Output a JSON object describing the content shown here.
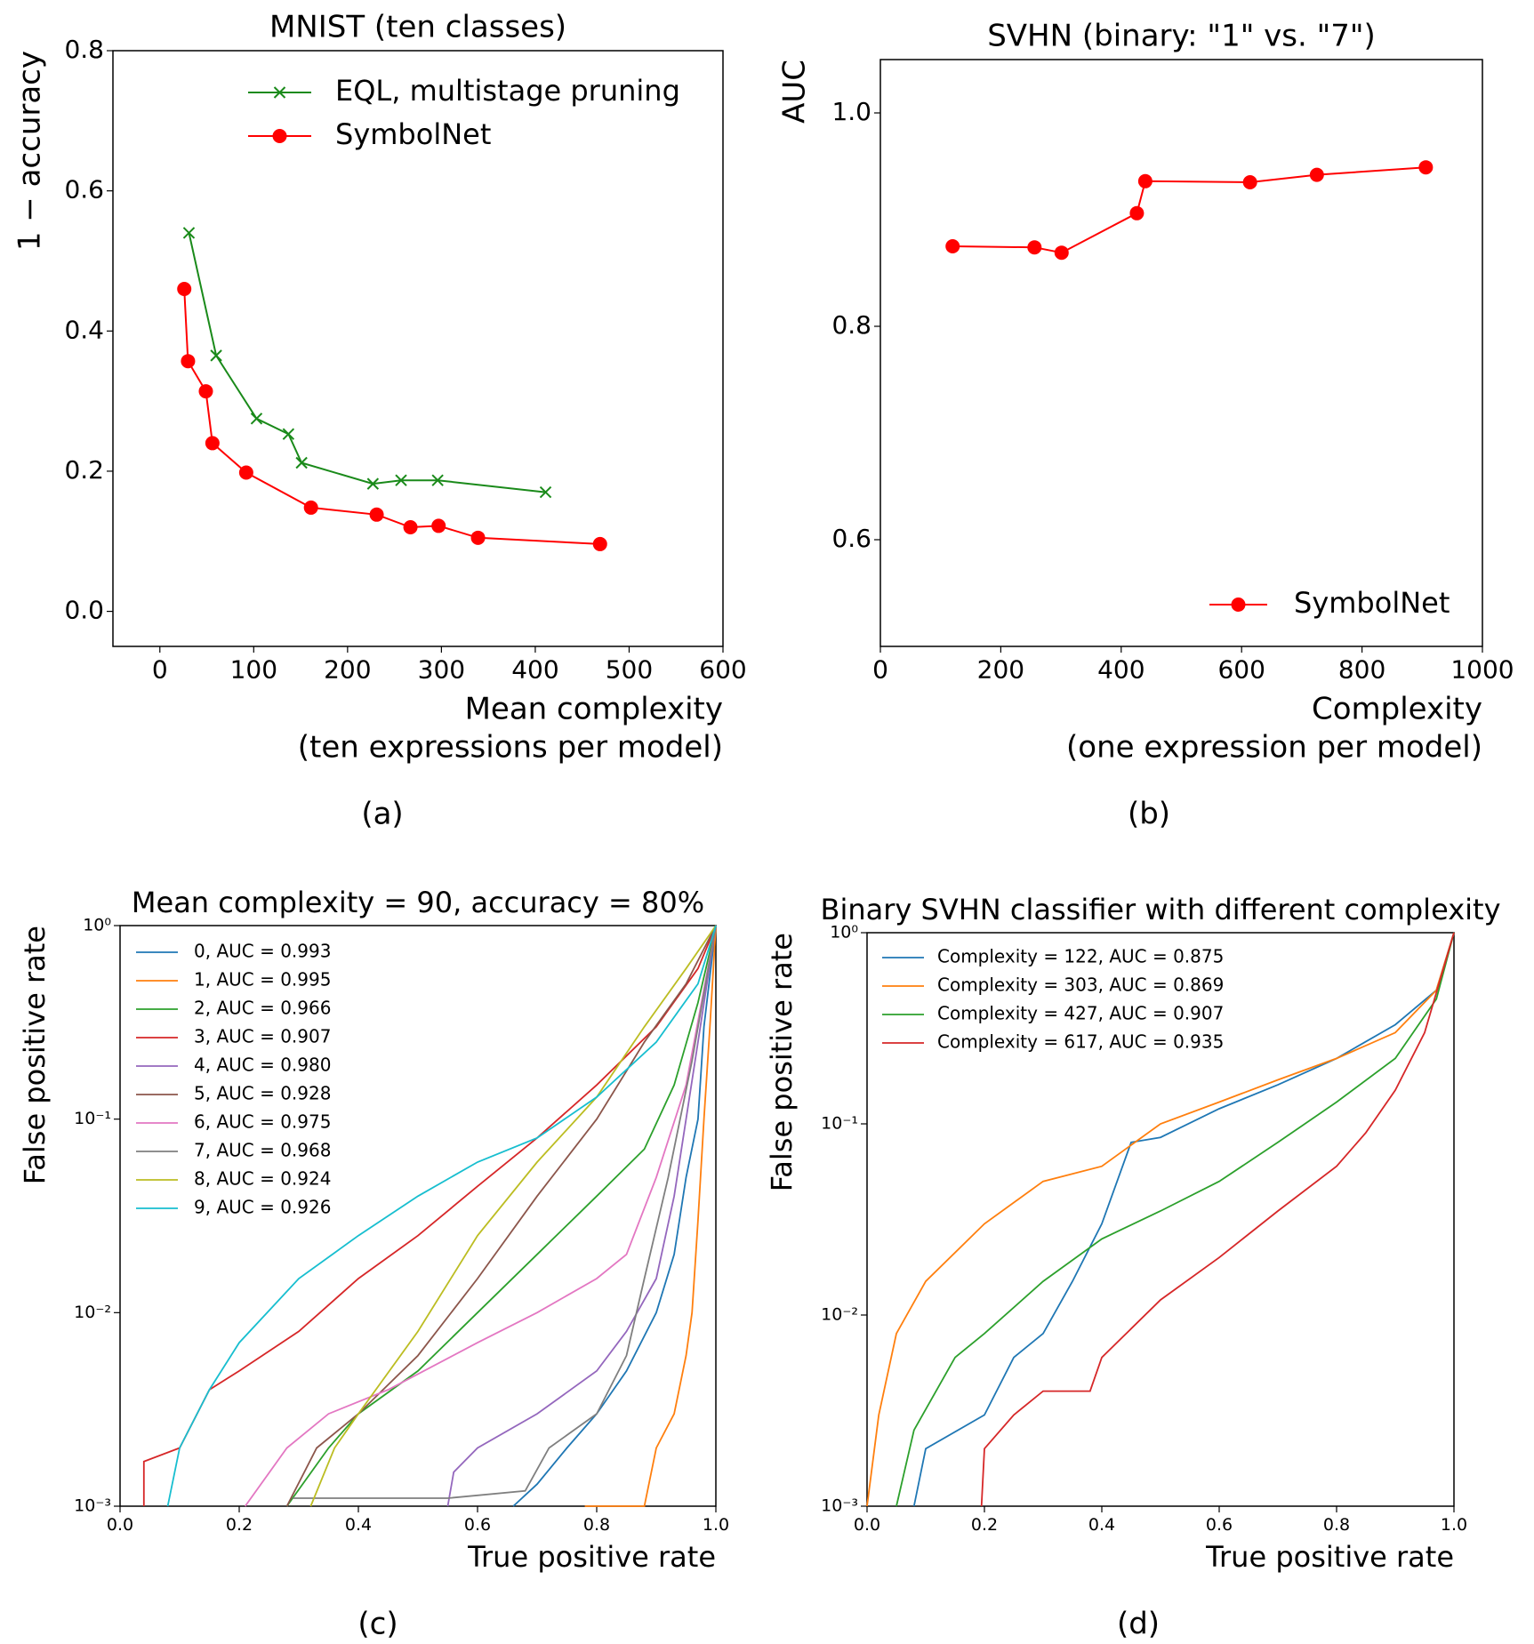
{
  "chart_data": [
    {
      "type": "line",
      "title": "MNIST (ten classes)",
      "ylabel": "1 − accuracy",
      "xlabel": [
        "Mean complexity",
        "(ten expressions per model)"
      ],
      "caption": "(a)",
      "xlim": [
        -50,
        600
      ],
      "ylim": [
        -0.05,
        0.8
      ],
      "xticks": [
        0,
        100,
        200,
        300,
        400,
        500,
        600
      ],
      "yticks": [
        {
          "value": 0,
          "label": "0.0"
        },
        {
          "value": 0.2,
          "label": "0.2"
        },
        {
          "value": 0.4,
          "label": "0.4"
        },
        {
          "value": 0.6,
          "label": "0.6"
        },
        {
          "value": 0.8,
          "label": "0.8"
        }
      ],
      "log_y": false,
      "grid": false,
      "legend": "upper right",
      "series": [
        {
          "name": "EQL, multistage pruning",
          "color": "#1a8a1a",
          "marker": "x",
          "x": [
            31,
            60,
            103,
            137,
            151,
            227,
            257,
            296,
            411
          ],
          "values": [
            0.54,
            0.365,
            0.275,
            0.253,
            0.212,
            0.182,
            0.187,
            0.187,
            0.17
          ]
        },
        {
          "name": "SymbolNet",
          "color": "#ff0000",
          "marker": "o",
          "x": [
            26,
            30,
            49,
            56,
            92,
            161,
            231,
            267,
            297,
            339,
            469
          ],
          "values": [
            0.46,
            0.357,
            0.314,
            0.24,
            0.198,
            0.148,
            0.138,
            0.12,
            0.122,
            0.105,
            0.096
          ]
        }
      ]
    },
    {
      "type": "line",
      "title": "SVHN (binary: \"1\" vs. \"7\")",
      "ylabel": "AUC",
      "xlabel": [
        "Complexity",
        "(one expression per model)"
      ],
      "caption": "(b)",
      "xlim": [
        0,
        1000
      ],
      "ylim": [
        0.5,
        1.05
      ],
      "xticks": [
        0,
        200,
        400,
        600,
        800,
        1000
      ],
      "yticks": [
        0.6,
        0.8,
        {
          "value": 1,
          "label": "1.0"
        }
      ],
      "log_y": false,
      "grid": false,
      "legend": "lower right",
      "series": [
        {
          "name": "SymbolNet",
          "color": "#ff0000",
          "marker": "o",
          "x": [
            120,
            256,
            301,
            426,
            440,
            614,
            725,
            906
          ],
          "values": [
            0.875,
            0.874,
            0.869,
            0.906,
            0.936,
            0.935,
            0.942,
            0.949
          ]
        }
      ]
    },
    {
      "type": "line",
      "title": "Mean complexity = 90, accuracy = 80%",
      "ylabel": "False positive rate",
      "xlabel": [
        "True positive rate"
      ],
      "caption": "(c)",
      "xlim": [
        0,
        1
      ],
      "ylim": [
        0.001,
        1
      ],
      "xticks": [
        {
          "value": 0,
          "label": "0.0"
        },
        0.2,
        0.4,
        0.6,
        0.8,
        {
          "value": 1,
          "label": "1.0"
        }
      ],
      "yticks": [
        {
          "value": 0.001,
          "label": "10⁻³"
        },
        {
          "value": 0.01,
          "label": "10⁻²"
        },
        {
          "value": 0.1,
          "label": "10⁻¹"
        },
        {
          "value": 1,
          "label": "10⁰"
        }
      ],
      "log_y": true,
      "grid": false,
      "legend": "upper left",
      "series": [
        {
          "name": "0, AUC = 0.993",
          "color": "#1f77b4",
          "x": [
            0.66,
            0.7,
            0.75,
            0.8,
            0.85,
            0.9,
            0.93,
            0.95,
            0.97,
            0.98,
            1
          ],
          "values": [
            0.001,
            0.0013,
            0.002,
            0.003,
            0.005,
            0.01,
            0.02,
            0.05,
            0.1,
            0.3,
            1
          ]
        },
        {
          "name": "1, AUC = 0.995",
          "color": "#ff7f0e",
          "x": [
            0.78,
            0.88,
            0.9,
            0.93,
            0.95,
            0.96,
            0.97,
            0.98,
            0.99,
            1
          ],
          "values": [
            0.001,
            0.001,
            0.002,
            0.003,
            0.006,
            0.01,
            0.03,
            0.1,
            0.3,
            1
          ]
        },
        {
          "name": "2, AUC = 0.966",
          "color": "#2ca02c",
          "x": [
            0.28,
            0.35,
            0.4,
            0.5,
            0.6,
            0.7,
            0.8,
            0.88,
            0.93,
            0.97,
            1
          ],
          "values": [
            0.001,
            0.002,
            0.003,
            0.005,
            0.01,
            0.02,
            0.04,
            0.07,
            0.15,
            0.4,
            1
          ]
        },
        {
          "name": "3, AUC = 0.907",
          "color": "#d62728",
          "x": [
            0.04,
            0.04,
            0.1,
            0.15,
            0.2,
            0.3,
            0.4,
            0.5,
            0.6,
            0.7,
            0.8,
            0.9,
            0.97,
            1
          ],
          "values": [
            0.001,
            0.0017,
            0.002,
            0.004,
            0.005,
            0.008,
            0.015,
            0.025,
            0.045,
            0.08,
            0.15,
            0.3,
            0.6,
            1
          ]
        },
        {
          "name": "4, AUC = 0.980",
          "color": "#9467bd",
          "x": [
            0.55,
            0.56,
            0.6,
            0.7,
            0.8,
            0.85,
            0.9,
            0.93,
            0.95,
            0.97,
            1
          ],
          "values": [
            0.001,
            0.0015,
            0.002,
            0.003,
            0.005,
            0.008,
            0.015,
            0.04,
            0.1,
            0.25,
            1
          ]
        },
        {
          "name": "5, AUC = 0.928",
          "color": "#8c564b",
          "x": [
            0.28,
            0.33,
            0.4,
            0.5,
            0.6,
            0.7,
            0.8,
            0.88,
            0.95,
            1
          ],
          "values": [
            0.001,
            0.002,
            0.003,
            0.006,
            0.015,
            0.04,
            0.1,
            0.25,
            0.5,
            1
          ]
        },
        {
          "name": "6, AUC = 0.975",
          "color": "#e377c2",
          "x": [
            0.21,
            0.28,
            0.35,
            0.45,
            0.6,
            0.7,
            0.8,
            0.85,
            0.9,
            0.95,
            1
          ],
          "values": [
            0.001,
            0.002,
            0.003,
            0.004,
            0.007,
            0.01,
            0.015,
            0.02,
            0.05,
            0.15,
            1
          ]
        },
        {
          "name": "7, AUC = 0.968",
          "color": "#7f7f7f",
          "x": [
            0.29,
            0.4,
            0.55,
            0.68,
            0.72,
            0.8,
            0.85,
            0.88,
            0.92,
            0.96,
            1
          ],
          "values": [
            0.0011,
            0.0011,
            0.0011,
            0.0012,
            0.002,
            0.003,
            0.006,
            0.015,
            0.05,
            0.2,
            1
          ]
        },
        {
          "name": "8, AUC = 0.924",
          "color": "#bcbd22",
          "x": [
            0.32,
            0.36,
            0.4,
            0.5,
            0.6,
            0.7,
            0.8,
            0.88,
            0.95,
            1
          ],
          "values": [
            0.001,
            0.002,
            0.003,
            0.008,
            0.025,
            0.06,
            0.13,
            0.3,
            0.6,
            1
          ]
        },
        {
          "name": "9, AUC = 0.926",
          "color": "#17becf",
          "x": [
            0.08,
            0.1,
            0.15,
            0.2,
            0.3,
            0.4,
            0.5,
            0.6,
            0.7,
            0.8,
            0.9,
            0.97,
            1
          ],
          "values": [
            0.001,
            0.002,
            0.004,
            0.007,
            0.015,
            0.025,
            0.04,
            0.06,
            0.08,
            0.13,
            0.25,
            0.5,
            1
          ]
        }
      ]
    },
    {
      "type": "line",
      "title": "Binary SVHN classifier with different complexity",
      "ylabel": "False positive rate",
      "xlabel": [
        "True positive rate"
      ],
      "caption": "(d)",
      "xlim": [
        0,
        1
      ],
      "ylim": [
        0.001,
        1
      ],
      "xticks": [
        {
          "value": 0,
          "label": "0.0"
        },
        0.2,
        0.4,
        0.6,
        0.8,
        {
          "value": 1,
          "label": "1.0"
        }
      ],
      "yticks": [
        {
          "value": 0.001,
          "label": "10⁻³"
        },
        {
          "value": 0.01,
          "label": "10⁻²"
        },
        {
          "value": 0.1,
          "label": "10⁻¹"
        },
        {
          "value": 1,
          "label": "10⁰"
        }
      ],
      "log_y": true,
      "grid": false,
      "legend": "upper left",
      "series": [
        {
          "name": "Complexity = 122, AUC = 0.875",
          "color": "#1f77b4",
          "x": [
            0.08,
            0.1,
            0.2,
            0.25,
            0.3,
            0.35,
            0.4,
            0.45,
            0.5,
            0.6,
            0.7,
            0.8,
            0.9,
            0.97,
            1
          ],
          "values": [
            0.001,
            0.002,
            0.003,
            0.006,
            0.008,
            0.015,
            0.03,
            0.08,
            0.085,
            0.12,
            0.16,
            0.22,
            0.33,
            0.5,
            1
          ]
        },
        {
          "name": "Complexity = 303, AUC = 0.869",
          "color": "#ff7f0e",
          "x": [
            0,
            0.02,
            0.05,
            0.1,
            0.2,
            0.3,
            0.4,
            0.5,
            0.6,
            0.7,
            0.8,
            0.9,
            0.97,
            1
          ],
          "values": [
            0.001,
            0.003,
            0.008,
            0.015,
            0.03,
            0.05,
            0.06,
            0.1,
            0.13,
            0.17,
            0.22,
            0.3,
            0.5,
            1
          ]
        },
        {
          "name": "Complexity = 427, AUC = 0.907",
          "color": "#2ca02c",
          "x": [
            0.05,
            0.08,
            0.15,
            0.2,
            0.3,
            0.4,
            0.5,
            0.6,
            0.7,
            0.8,
            0.9,
            0.97,
            1
          ],
          "values": [
            0.001,
            0.0025,
            0.006,
            0.008,
            0.015,
            0.025,
            0.035,
            0.05,
            0.08,
            0.13,
            0.22,
            0.45,
            1
          ]
        },
        {
          "name": "Complexity = 617, AUC = 0.935",
          "color": "#d62728",
          "x": [
            0.195,
            0.2,
            0.25,
            0.3,
            0.38,
            0.4,
            0.5,
            0.6,
            0.7,
            0.8,
            0.85,
            0.9,
            0.95,
            1
          ],
          "values": [
            0.001,
            0.002,
            0.003,
            0.004,
            0.004,
            0.006,
            0.012,
            0.02,
            0.035,
            0.06,
            0.09,
            0.15,
            0.3,
            1
          ]
        }
      ]
    }
  ]
}
